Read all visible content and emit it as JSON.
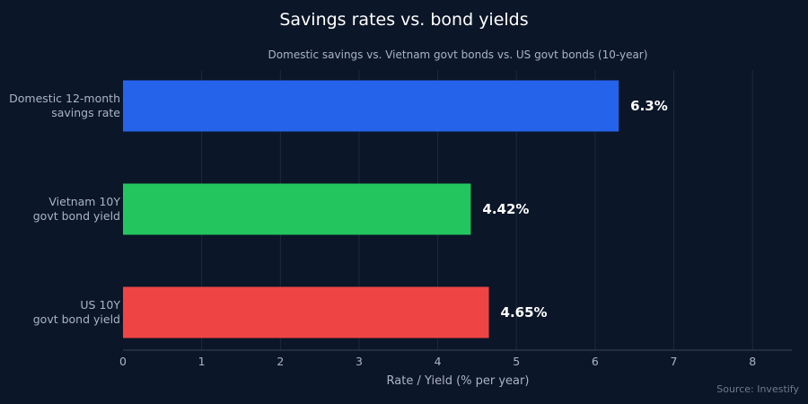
{
  "chart_data": {
    "type": "bar",
    "orientation": "horizontal",
    "title": "Savings rates vs. bond yields",
    "subtitle": "Domestic savings vs. Vietnam govt bonds vs. US govt bonds (10-year)",
    "xlabel": "Rate / Yield (% per year)",
    "ylabel": "",
    "xlim": [
      0,
      8.5
    ],
    "xticks": [
      0,
      1,
      2,
      3,
      4,
      5,
      6,
      7,
      8
    ],
    "grid": true,
    "categories": [
      [
        "Domestic 12-month",
        "savings rate"
      ],
      [
        "Vietnam 10Y",
        "govt bond yield"
      ],
      [
        "US 10Y",
        "govt bond yield"
      ]
    ],
    "values": [
      6.3,
      4.42,
      4.65
    ],
    "value_labels": [
      "6.3%",
      "4.42%",
      "4.65%"
    ],
    "colors": [
      "#2563eb",
      "#22c55e",
      "#ef4444"
    ],
    "source": "Source: Investify"
  }
}
